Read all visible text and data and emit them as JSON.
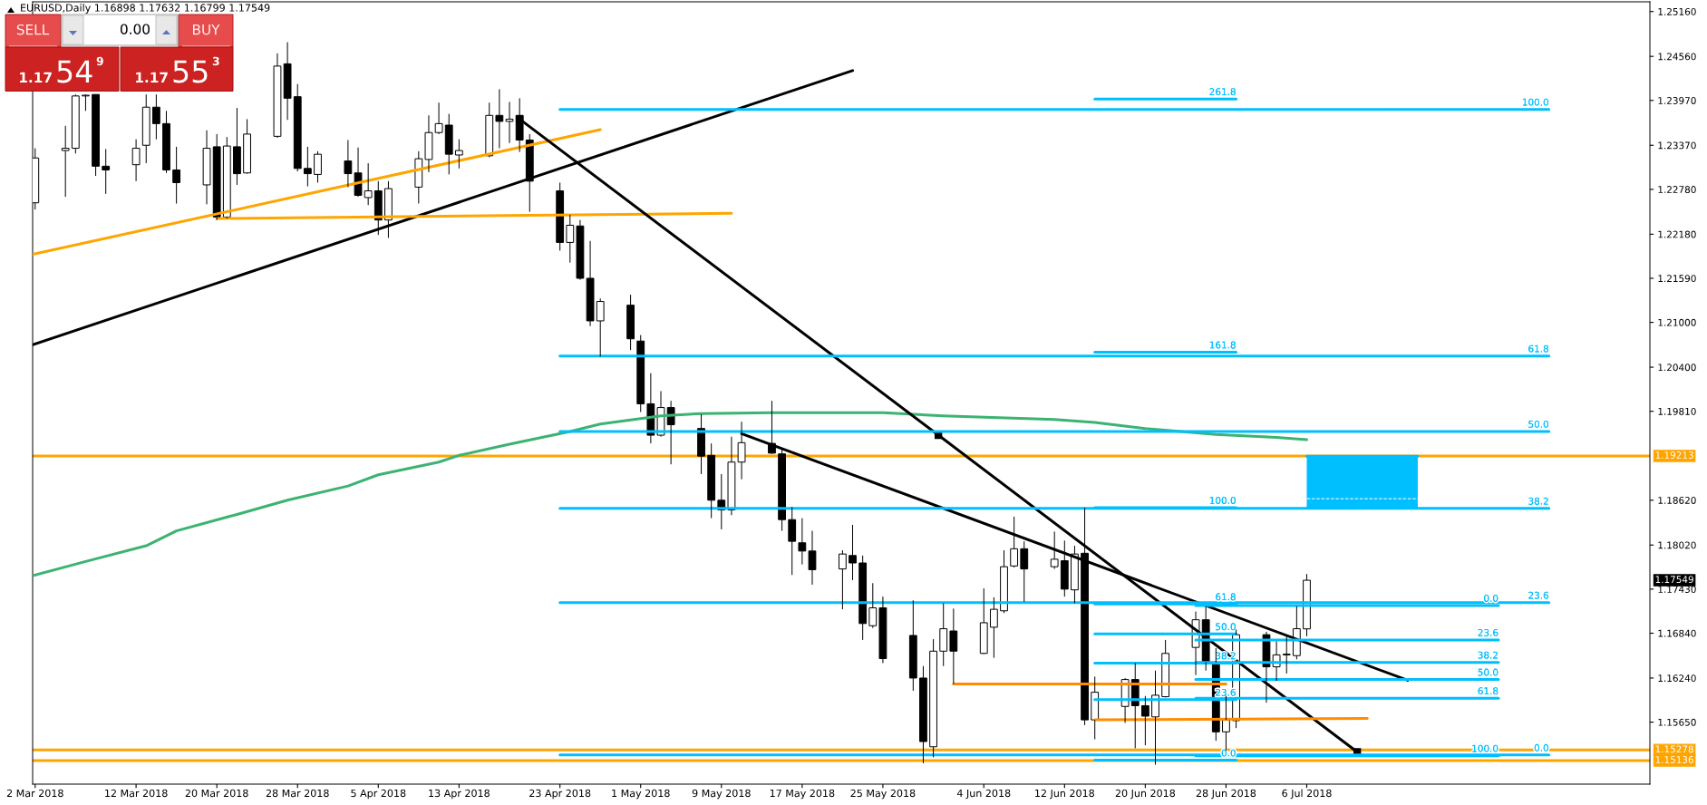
{
  "chart_data": {
    "type": "candlestick",
    "title": "EURUSD,Daily 1.16898 1.17632 1.16799 1.17549",
    "x": [
      "2018-03-02",
      "2018-03-05",
      "2018-03-06",
      "2018-03-07",
      "2018-03-08",
      "2018-03-09",
      "2018-03-12",
      "2018-03-13",
      "2018-03-14",
      "2018-03-15",
      "2018-03-16",
      "2018-03-19",
      "2018-03-20",
      "2018-03-21",
      "2018-03-22",
      "2018-03-23",
      "2018-03-26",
      "2018-03-27",
      "2018-03-28",
      "2018-03-29",
      "2018-03-30",
      "2018-04-02",
      "2018-04-03",
      "2018-04-04",
      "2018-04-05",
      "2018-04-06",
      "2018-04-09",
      "2018-04-10",
      "2018-04-11",
      "2018-04-12",
      "2018-04-13",
      "2018-04-16",
      "2018-04-17",
      "2018-04-18",
      "2018-04-19",
      "2018-04-20",
      "2018-04-23",
      "2018-04-24",
      "2018-04-25",
      "2018-04-26",
      "2018-04-27",
      "2018-04-30",
      "2018-05-01",
      "2018-05-02",
      "2018-05-03",
      "2018-05-04",
      "2018-05-07",
      "2018-05-08",
      "2018-05-09",
      "2018-05-10",
      "2018-05-11",
      "2018-05-14",
      "2018-05-15",
      "2018-05-16",
      "2018-05-17",
      "2018-05-18",
      "2018-05-21",
      "2018-05-22",
      "2018-05-23",
      "2018-05-24",
      "2018-05-25",
      "2018-05-28",
      "2018-05-29",
      "2018-05-30",
      "2018-05-31",
      "2018-06-01",
      "2018-06-04",
      "2018-06-05",
      "2018-06-06",
      "2018-06-07",
      "2018-06-08",
      "2018-06-11",
      "2018-06-12",
      "2018-06-13",
      "2018-06-14",
      "2018-06-15",
      "2018-06-18",
      "2018-06-19",
      "2018-06-20",
      "2018-06-21",
      "2018-06-22",
      "2018-06-25",
      "2018-06-26",
      "2018-06-27",
      "2018-06-28",
      "2018-06-29",
      "2018-07-02",
      "2018-07-03",
      "2018-07-04",
      "2018-07-05",
      "2018-07-06"
    ],
    "ohlc": [
      [
        1.226,
        1.2333,
        1.2251,
        1.232
      ],
      [
        1.233,
        1.2363,
        1.2268,
        1.2333
      ],
      [
        1.2333,
        1.2405,
        1.2326,
        1.2403
      ],
      [
        1.2403,
        1.2405,
        1.2383,
        1.2404
      ],
      [
        1.2405,
        1.2405,
        1.2296,
        1.2309
      ],
      [
        1.2309,
        1.2332,
        1.2272,
        1.2304
      ],
      [
        1.2311,
        1.2345,
        1.2289,
        1.2333
      ],
      [
        1.2337,
        1.2405,
        1.2313,
        1.2388
      ],
      [
        1.2388,
        1.2405,
        1.2345,
        1.2366
      ],
      [
        1.2366,
        1.2383,
        1.23,
        1.2304
      ],
      [
        1.2304,
        1.2335,
        1.2259,
        1.2287
      ],
      [
        1.2284,
        1.2357,
        1.2258,
        1.2333
      ],
      [
        1.2335,
        1.2352,
        1.2237,
        1.2241
      ],
      [
        1.2241,
        1.2348,
        1.2239,
        1.2336
      ],
      [
        1.2335,
        1.2387,
        1.2284,
        1.2299
      ],
      [
        1.23,
        1.2372,
        1.2299,
        1.2352
      ],
      [
        1.2349,
        1.246,
        1.2347,
        1.2443
      ],
      [
        1.2446,
        1.2475,
        1.2371,
        1.24
      ],
      [
        1.2402,
        1.2419,
        1.2302,
        1.2306
      ],
      [
        1.2306,
        1.2335,
        1.2282,
        1.2299
      ],
      [
        1.2298,
        1.2329,
        1.2287,
        1.2325
      ],
      [
        1.2316,
        1.2344,
        1.2281,
        1.2299
      ],
      [
        1.23,
        1.2334,
        1.2268,
        1.227
      ],
      [
        1.2267,
        1.2313,
        1.2257,
        1.2276
      ],
      [
        1.2276,
        1.2289,
        1.2217,
        1.2237
      ],
      [
        1.2237,
        1.2289,
        1.2213,
        1.2279
      ],
      [
        1.2281,
        1.2329,
        1.2259,
        1.2319
      ],
      [
        1.2318,
        1.2377,
        1.2301,
        1.2354
      ],
      [
        1.2354,
        1.2394,
        1.2352,
        1.2366
      ],
      [
        1.2364,
        1.2379,
        1.2298,
        1.2325
      ],
      [
        1.2324,
        1.2345,
        1.2306,
        1.233
      ],
      [
        1.2323,
        1.2394,
        1.2321,
        1.2377
      ],
      [
        1.2377,
        1.2412,
        1.2333,
        1.2369
      ],
      [
        1.2369,
        1.2395,
        1.234,
        1.2372
      ],
      [
        1.2377,
        1.24,
        1.2328,
        1.2344
      ],
      [
        1.2344,
        1.2352,
        1.2248,
        1.2289
      ],
      [
        1.2276,
        1.2287,
        1.2196,
        1.2207
      ],
      [
        1.2207,
        1.2244,
        1.218,
        1.223
      ],
      [
        1.2229,
        1.2237,
        1.2157,
        1.2159
      ],
      [
        1.2159,
        1.2209,
        1.2095,
        1.2102
      ],
      [
        1.2102,
        1.2132,
        1.2054,
        1.2128
      ],
      [
        1.2123,
        1.2137,
        1.2063,
        1.2078
      ],
      [
        1.2075,
        1.2083,
        1.198,
        1.1991
      ],
      [
        1.1991,
        1.2032,
        1.1938,
        1.1949
      ],
      [
        1.1949,
        1.2008,
        1.1947,
        1.1986
      ],
      [
        1.1986,
        1.1995,
        1.191,
        1.1963
      ],
      [
        1.1958,
        1.1977,
        1.1897,
        1.1921
      ],
      [
        1.1922,
        1.1938,
        1.1838,
        1.1862
      ],
      [
        1.1862,
        1.1897,
        1.1823,
        1.1849
      ],
      [
        1.1849,
        1.1947,
        1.1842,
        1.1913
      ],
      [
        1.1913,
        1.1967,
        1.189,
        1.1939
      ],
      [
        1.1938,
        1.1995,
        1.1924,
        1.1925
      ],
      [
        1.1924,
        1.1932,
        1.1821,
        1.1836
      ],
      [
        1.1836,
        1.1853,
        1.1762,
        1.1807
      ],
      [
        1.1805,
        1.1838,
        1.1776,
        1.1794
      ],
      [
        1.1794,
        1.1821,
        1.1749,
        1.1769
      ],
      [
        1.177,
        1.1795,
        1.1716,
        1.179
      ],
      [
        1.1788,
        1.1829,
        1.1755,
        1.1778
      ],
      [
        1.1778,
        1.1788,
        1.1675,
        1.1697
      ],
      [
        1.1694,
        1.1751,
        1.1691,
        1.1718
      ],
      [
        1.1718,
        1.1733,
        1.1644,
        1.165
      ],
      [
        1.1681,
        1.1728,
        1.1607,
        1.1624
      ],
      [
        1.1624,
        1.164,
        1.151,
        1.1539
      ],
      [
        1.1532,
        1.1676,
        1.1518,
        1.166
      ],
      [
        1.166,
        1.1724,
        1.164,
        1.169
      ],
      [
        1.1687,
        1.1717,
        1.1616,
        1.166
      ],
      [
        1.1657,
        1.1744,
        1.1656,
        1.1698
      ],
      [
        1.1692,
        1.1732,
        1.1651,
        1.1716
      ],
      [
        1.1714,
        1.1795,
        1.1711,
        1.1773
      ],
      [
        1.1774,
        1.184,
        1.1772,
        1.1797
      ],
      [
        1.1797,
        1.1807,
        1.1726,
        1.177
      ],
      [
        1.1773,
        1.182,
        1.177,
        1.1783
      ],
      [
        1.1781,
        1.1808,
        1.1733,
        1.1743
      ],
      [
        1.1742,
        1.1801,
        1.1724,
        1.179
      ],
      [
        1.1791,
        1.1852,
        1.1561,
        1.1568
      ],
      [
        1.1568,
        1.1626,
        1.1542,
        1.1605
      ],
      [
        1.1586,
        1.1624,
        1.1564,
        1.1622
      ],
      [
        1.1622,
        1.1644,
        1.153,
        1.1587
      ],
      [
        1.1587,
        1.16,
        1.1534,
        1.1573
      ],
      [
        1.1572,
        1.1634,
        1.1508,
        1.1601
      ],
      [
        1.1599,
        1.1675,
        1.1598,
        1.1657
      ],
      [
        1.1665,
        1.1713,
        1.1628,
        1.1702
      ],
      [
        1.1702,
        1.172,
        1.1634,
        1.1645
      ],
      [
        1.1645,
        1.1664,
        1.154,
        1.1552
      ],
      [
        1.1552,
        1.16,
        1.1527,
        1.1568
      ],
      [
        1.1567,
        1.1689,
        1.1557,
        1.1682
      ],
      [
        1.1682,
        1.1686,
        1.1591,
        1.1639
      ],
      [
        1.1639,
        1.1673,
        1.162,
        1.1655
      ],
      [
        1.1655,
        1.168,
        1.163,
        1.1656
      ],
      [
        1.1654,
        1.172,
        1.1649,
        1.169
      ],
      [
        1.16898,
        1.17632,
        1.16799,
        1.17549
      ]
    ],
    "series": [
      {
        "type": "line",
        "color": "#3cb371",
        "x": [
          "2018-03-01T18:00",
          "2018-03-07",
          "2018-03-13",
          "2018-03-16",
          "2018-03-22",
          "2018-03-27",
          "2018-04-02",
          "2018-04-05",
          "2018-04-11",
          "2018-04-13",
          "2018-04-18",
          "2018-04-24",
          "2018-04-27",
          "2018-05-03",
          "2018-05-07",
          "2018-05-14",
          "2018-05-25",
          "2018-05-31",
          "2018-06-11",
          "2018-06-15",
          "2018-06-20",
          "2018-06-27",
          "2018-07-03",
          "2018-07-06"
        ],
        "values": [
          1.1761,
          1.178,
          1.1801,
          1.1821,
          1.1843,
          1.1862,
          1.1881,
          1.1896,
          1.1913,
          1.1922,
          1.1937,
          1.1954,
          1.1964,
          1.1975,
          1.1978,
          1.1979,
          1.1979,
          1.1975,
          1.197,
          1.1966,
          1.1958,
          1.195,
          1.1946,
          1.1943
        ]
      },
      {
        "type": "line",
        "color": "#000000",
        "x": [
          "2018-03-01T18:00",
          "2018-05-22"
        ],
        "values": [
          1.207,
          1.2437
        ]
      },
      {
        "type": "line",
        "color": "#ffa500",
        "x": [
          "2018-03-01T18:00",
          "2018-04-27"
        ],
        "values": [
          1.2191,
          1.2358
        ]
      },
      {
        "type": "line",
        "color": "#ffa500",
        "x": [
          "2018-03-20",
          "2018-05-10"
        ],
        "values": [
          1.2239,
          1.2246
        ]
      },
      {
        "type": "line",
        "color": "#000000",
        "marker": "square",
        "x": [
          "2018-04-19",
          "2018-05-30T12:00",
          "2018-07-11"
        ],
        "values": [
          1.2372,
          1.1949,
          1.1525
        ]
      },
      {
        "type": "line",
        "color": "#000000",
        "x": [
          "2018-05-11",
          "2018-07-16"
        ],
        "values": [
          1.1951,
          1.1621
        ]
      },
      {
        "type": "line",
        "color": "#ff8c00",
        "x": [
          "2018-06-01",
          "2018-06-28"
        ],
        "values": [
          1.1616,
          1.1616
        ]
      },
      {
        "type": "line",
        "color": "#ff8c00",
        "x": [
          "2018-06-15",
          "2018-07-12"
        ],
        "values": [
          1.1568,
          1.157
        ]
      },
      {
        "type": "line",
        "color": "#00bfff",
        "x": [
          "2018-04-23",
          "2018-07-30"
        ],
        "values": [
          1.2385,
          1.2385
        ]
      },
      {
        "type": "line",
        "color": "#00bfff",
        "x": [
          "2018-04-23",
          "2018-07-30"
        ],
        "values": [
          1.2055,
          1.2055
        ]
      },
      {
        "type": "line",
        "color": "#00bfff",
        "x": [
          "2018-04-23",
          "2018-07-30"
        ],
        "values": [
          1.1954,
          1.1954
        ]
      },
      {
        "type": "line",
        "color": "#00bfff",
        "x": [
          "2018-04-23",
          "2018-07-30"
        ],
        "values": [
          1.1851,
          1.1851
        ]
      },
      {
        "type": "line",
        "color": "#00bfff",
        "x": [
          "2018-04-23",
          "2018-07-30"
        ],
        "values": [
          1.1725,
          1.1725
        ]
      },
      {
        "type": "line",
        "color": "#00bfff",
        "x": [
          "2018-04-23",
          "2018-07-30"
        ],
        "values": [
          1.1521,
          1.1521
        ]
      },
      {
        "type": "line",
        "color": "#00bfff",
        "x": [
          "2018-06-15",
          "2018-06-29"
        ],
        "values": [
          1.2399,
          1.2399
        ]
      },
      {
        "type": "line",
        "color": "#00bfff",
        "x": [
          "2018-06-15",
          "2018-06-29"
        ],
        "values": [
          1.206,
          1.206
        ]
      },
      {
        "type": "line",
        "color": "#00bfff",
        "x": [
          "2018-06-15",
          "2018-06-29"
        ],
        "values": [
          1.1852,
          1.1852
        ]
      },
      {
        "type": "line",
        "color": "#00bfff",
        "x": [
          "2018-06-15",
          "2018-06-29"
        ],
        "values": [
          1.1723,
          1.1723
        ]
      },
      {
        "type": "line",
        "color": "#00bfff",
        "x": [
          "2018-06-15",
          "2018-06-29"
        ],
        "values": [
          1.1683,
          1.1683
        ]
      },
      {
        "type": "line",
        "color": "#00bfff",
        "x": [
          "2018-06-15",
          "2018-06-29"
        ],
        "values": [
          1.1644,
          1.1644
        ]
      },
      {
        "type": "line",
        "color": "#00bfff",
        "x": [
          "2018-06-15",
          "2018-06-29"
        ],
        "values": [
          1.1595,
          1.1595
        ]
      },
      {
        "type": "line",
        "color": "#00bfff",
        "x": [
          "2018-06-15",
          "2018-06-29"
        ],
        "values": [
          1.1514,
          1.1514
        ]
      },
      {
        "type": "line",
        "color": "#00bfff",
        "x": [
          "2018-06-25",
          "2018-07-25"
        ],
        "values": [
          1.1721,
          1.1721
        ]
      },
      {
        "type": "line",
        "color": "#00bfff",
        "x": [
          "2018-06-25",
          "2018-07-25"
        ],
        "values": [
          1.1675,
          1.1675
        ]
      },
      {
        "type": "line",
        "color": "#00bfff",
        "x": [
          "2018-06-25",
          "2018-07-25"
        ],
        "values": [
          1.1645,
          1.1645
        ]
      },
      {
        "type": "line",
        "color": "#00bfff",
        "x": [
          "2018-06-25",
          "2018-07-25"
        ],
        "values": [
          1.1622,
          1.1622
        ]
      },
      {
        "type": "line",
        "color": "#00bfff",
        "x": [
          "2018-06-25",
          "2018-07-25"
        ],
        "values": [
          1.1597,
          1.1597
        ]
      },
      {
        "type": "line",
        "color": "#00bfff",
        "x": [
          "2018-06-25",
          "2018-07-25"
        ],
        "values": [
          1.152,
          1.152
        ]
      },
      {
        "type": "line",
        "color": "#00bfff",
        "x": [
          "2018-07-06",
          "2018-07-17"
        ],
        "values": [
          1.1921,
          1.1921
        ],
        "lower": [
          1.1852,
          1.1852
        ],
        "upper": [
          1.1921,
          1.1921
        ]
      },
      {
        "type": "line",
        "color": "#ffffff",
        "line_style": "dashed",
        "x": [
          "2018-07-06",
          "2018-07-17"
        ],
        "values": [
          1.1864,
          1.1864
        ]
      }
    ],
    "ref_lines": [
      {
        "axis": "y",
        "value": 1.19213,
        "label": "1.19213",
        "color": "#ffa500"
      },
      {
        "axis": "y",
        "value": 1.15278,
        "label": "1.15278",
        "color": "#ffa500"
      },
      {
        "axis": "y",
        "value": 1.15136,
        "label": "1.15136",
        "color": "#ffa500"
      }
    ],
    "annotations": [
      "SELL",
      "0.00",
      "BUY",
      "1.17",
      "54",
      "9",
      "1.17",
      "55",
      "3",
      "1.17549",
      {
        "text": "100.0",
        "x": "2018-07-30",
        "y": 1.2385
      },
      {
        "text": "61.8",
        "x": "2018-07-30",
        "y": 1.2055
      },
      {
        "text": "50.0",
        "x": "2018-07-30",
        "y": 1.1954
      },
      {
        "text": "38.2",
        "x": "2018-07-30",
        "y": 1.1851
      },
      {
        "text": "23.6",
        "x": "2018-07-30",
        "y": 1.1725
      },
      {
        "text": "0.0",
        "x": "2018-07-30",
        "y": 1.1521
      },
      {
        "text": "261.8",
        "x": "2018-06-29",
        "y": 1.2399
      },
      {
        "text": "161.8",
        "x": "2018-06-29",
        "y": 1.206
      },
      {
        "text": "100.0",
        "x": "2018-06-29",
        "y": 1.1852
      },
      {
        "text": "61.8",
        "x": "2018-06-29",
        "y": 1.1723
      },
      {
        "text": "50.0",
        "x": "2018-06-29",
        "y": 1.1683
      },
      {
        "text": "38.2",
        "x": "2018-06-29",
        "y": 1.1644
      },
      {
        "text": "23.6",
        "x": "2018-06-29",
        "y": 1.1595
      },
      {
        "text": "0.0",
        "x": "2018-06-29",
        "y": 1.1514
      },
      {
        "text": "0.0",
        "x": "2018-07-25",
        "y": 1.1721
      },
      {
        "text": "23.6",
        "x": "2018-07-25",
        "y": 1.1675
      },
      {
        "text": "38.2",
        "x": "2018-07-25",
        "y": 1.1645
      },
      {
        "text": "50.0",
        "x": "2018-07-25",
        "y": 1.1622
      },
      {
        "text": "61.8",
        "x": "2018-07-25",
        "y": 1.1597
      },
      {
        "text": "100.0",
        "x": "2018-07-25",
        "y": 1.152
      }
    ],
    "xlim": [
      "2018-03-01T18:00",
      "2018-08-09"
    ],
    "xticks": [
      {
        "value": "2018-03-02",
        "label": "2 Mar 2018"
      },
      {
        "value": "2018-03-12",
        "label": "12 Mar 2018"
      },
      {
        "value": "2018-03-20",
        "label": "20 Mar 2018"
      },
      {
        "value": "2018-03-28",
        "label": "28 Mar 2018"
      },
      {
        "value": "2018-04-05",
        "label": "5 Apr 2018"
      },
      {
        "value": "2018-04-13",
        "label": "13 Apr 2018"
      },
      {
        "value": "2018-04-23",
        "label": "23 Apr 2018"
      },
      {
        "value": "2018-05-01",
        "label": "1 May 2018"
      },
      {
        "value": "2018-05-09",
        "label": "9 May 2018"
      },
      {
        "value": "2018-05-17",
        "label": "17 May 2018"
      },
      {
        "value": "2018-05-25",
        "label": "25 May 2018"
      },
      {
        "value": "2018-06-04",
        "label": "4 Jun 2018"
      },
      {
        "value": "2018-06-12",
        "label": "12 Jun 2018"
      },
      {
        "value": "2018-06-20",
        "label": "20 Jun 2018"
      },
      {
        "value": "2018-06-28",
        "label": "28 Jun 2018"
      },
      {
        "value": "2018-07-06",
        "label": "6 Jul 2018"
      }
    ],
    "ylim": [
      1.1482,
      1.2529
    ],
    "yticks": [
      {
        "value": 1.2516,
        "label": "1.25160"
      },
      {
        "value": 1.2456,
        "label": "1.24560"
      },
      {
        "value": 1.2397,
        "label": "1.23970"
      },
      {
        "value": 1.2337,
        "label": "1.23370"
      },
      {
        "value": 1.2278,
        "label": "1.22780"
      },
      {
        "value": 1.2218,
        "label": "1.22180"
      },
      {
        "value": 1.2159,
        "label": "1.21590"
      },
      {
        "value": 1.21,
        "label": "1.21000"
      },
      {
        "value": 1.204,
        "label": "1.20400"
      },
      {
        "value": 1.1981,
        "label": "1.19810"
      },
      {
        "value": 1.1862,
        "label": "1.18620"
      },
      {
        "value": 1.1802,
        "label": "1.18020"
      },
      {
        "value": 1.1743,
        "label": "1.17430"
      },
      {
        "value": 1.1684,
        "label": "1.16840"
      },
      {
        "value": 1.1624,
        "label": "1.16240"
      },
      {
        "value": 1.1565,
        "label": "1.15650"
      }
    ]
  }
}
